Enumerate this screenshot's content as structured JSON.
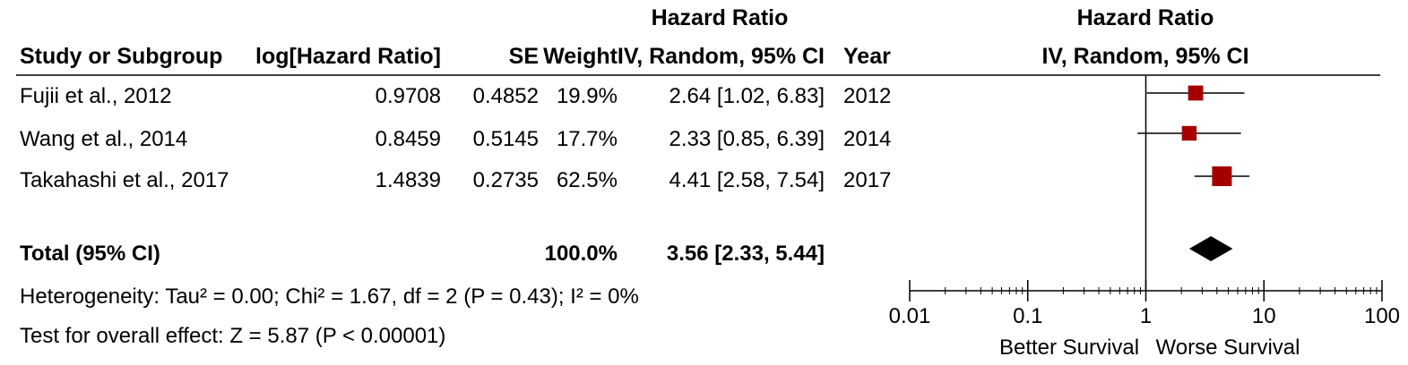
{
  "headers": {
    "group_hr_left": "Hazard Ratio",
    "group_hr_right": "Hazard Ratio",
    "study": "Study or Subgroup",
    "loghr": "log[Hazard Ratio]",
    "se": "SE",
    "weight": "Weight",
    "ci": "IV, Random, 95% CI",
    "year": "Year",
    "ci_plot": "IV, Random, 95% CI"
  },
  "studies": [
    {
      "name": "Fujii et al., 2012",
      "loghr": "0.9708",
      "se": "0.4852",
      "weight": "19.9%",
      "ci": "2.64 [1.02, 6.83]",
      "year": "2012"
    },
    {
      "name": "Wang et al., 2014",
      "loghr": "0.8459",
      "se": "0.5145",
      "weight": "17.7%",
      "ci": "2.33 [0.85, 6.39]",
      "year": "2014"
    },
    {
      "name": "Takahashi et al., 2017",
      "loghr": "1.4839",
      "se": "0.2735",
      "weight": "62.5%",
      "ci": "4.41 [2.58, 7.54]",
      "year": "2017"
    }
  ],
  "total": {
    "name": "Total (95% CI)",
    "weight": "100.0%",
    "ci": "3.56 [2.33, 5.44]"
  },
  "heterogeneity": "Heterogeneity: Tau² = 0.00; Chi² = 1.67, df = 2 (P = 0.43); I² = 0%",
  "overall_effect": "Test for overall effect: Z = 5.87 (P < 0.00001)",
  "colors": {
    "square": "#a50000",
    "diamond": "#000000",
    "lines": "#000000"
  },
  "chart_data": {
    "type": "forest",
    "scale": "log",
    "xlim": [
      0.01,
      100
    ],
    "ticks": [
      {
        "value": 0.01,
        "label": "0.01"
      },
      {
        "value": 0.1,
        "label": "0.1"
      },
      {
        "value": 1,
        "label": "1"
      },
      {
        "value": 10,
        "label": "10"
      },
      {
        "value": 100,
        "label": "100"
      }
    ],
    "left_label": "Better Survival",
    "right_label": "Worse Survival",
    "null_value": 1,
    "points": [
      {
        "name": "Fujii et al., 2012",
        "hr": 2.64,
        "lower": 1.02,
        "upper": 6.83,
        "weight": 19.9
      },
      {
        "name": "Wang et al., 2014",
        "hr": 2.33,
        "lower": 0.85,
        "upper": 6.39,
        "weight": 17.7
      },
      {
        "name": "Takahashi et al., 2017",
        "hr": 4.41,
        "lower": 2.58,
        "upper": 7.54,
        "weight": 62.5
      }
    ],
    "pooled": {
      "hr": 3.56,
      "lower": 2.33,
      "upper": 5.44
    }
  }
}
